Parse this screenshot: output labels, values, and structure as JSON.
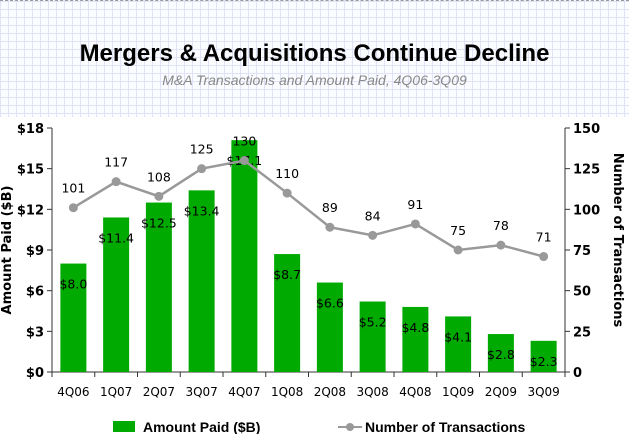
{
  "chart_data": {
    "type": "bar+line",
    "title": "Mergers & Acquisitions Continue Decline",
    "subtitle": "M&A Transactions and Amount Paid, 4Q06-3Q09",
    "categories": [
      "4Q06",
      "1Q07",
      "2Q07",
      "3Q07",
      "4Q07",
      "1Q08",
      "2Q08",
      "3Q08",
      "4Q08",
      "1Q09",
      "2Q09",
      "3Q09"
    ],
    "series": [
      {
        "name": "Amount Paid ($B)",
        "type": "bar",
        "axis": "left",
        "color": "#00aa00",
        "values": [
          8.0,
          11.4,
          12.5,
          13.4,
          17.1,
          8.7,
          6.6,
          5.2,
          4.8,
          4.1,
          2.8,
          2.3
        ],
        "labels": [
          "$8.0",
          "$11.4",
          "$12.5",
          "$13.4",
          "$17.1",
          "$8.7",
          "$6.6",
          "$5.2",
          "$4.8",
          "$4.1",
          "$2.8",
          "$2.3"
        ]
      },
      {
        "name": "Number of Transactions",
        "type": "line",
        "axis": "right",
        "color": "#999999",
        "values": [
          101,
          117,
          108,
          125,
          130,
          110,
          89,
          84,
          91,
          75,
          78,
          71
        ],
        "labels": [
          "101",
          "117",
          "108",
          "125",
          "130",
          "110",
          "89",
          "84",
          "91",
          "75",
          "78",
          "71"
        ]
      }
    ],
    "ylabel_left": "Amount Paid ($B)",
    "ylabel_right": "Number of Transactions",
    "ylim_left": [
      0,
      18
    ],
    "ylim_right": [
      0,
      150
    ],
    "yticks_left": [
      "$0",
      "$3",
      "$6",
      "$9",
      "$12",
      "$15",
      "$18"
    ],
    "yticks_right": [
      "0",
      "25",
      "50",
      "75",
      "100",
      "125",
      "150"
    ],
    "legend": {
      "placement": "bottom",
      "items": [
        "Amount Paid ($B)",
        "Number of Transactions"
      ]
    },
    "grid": false
  }
}
